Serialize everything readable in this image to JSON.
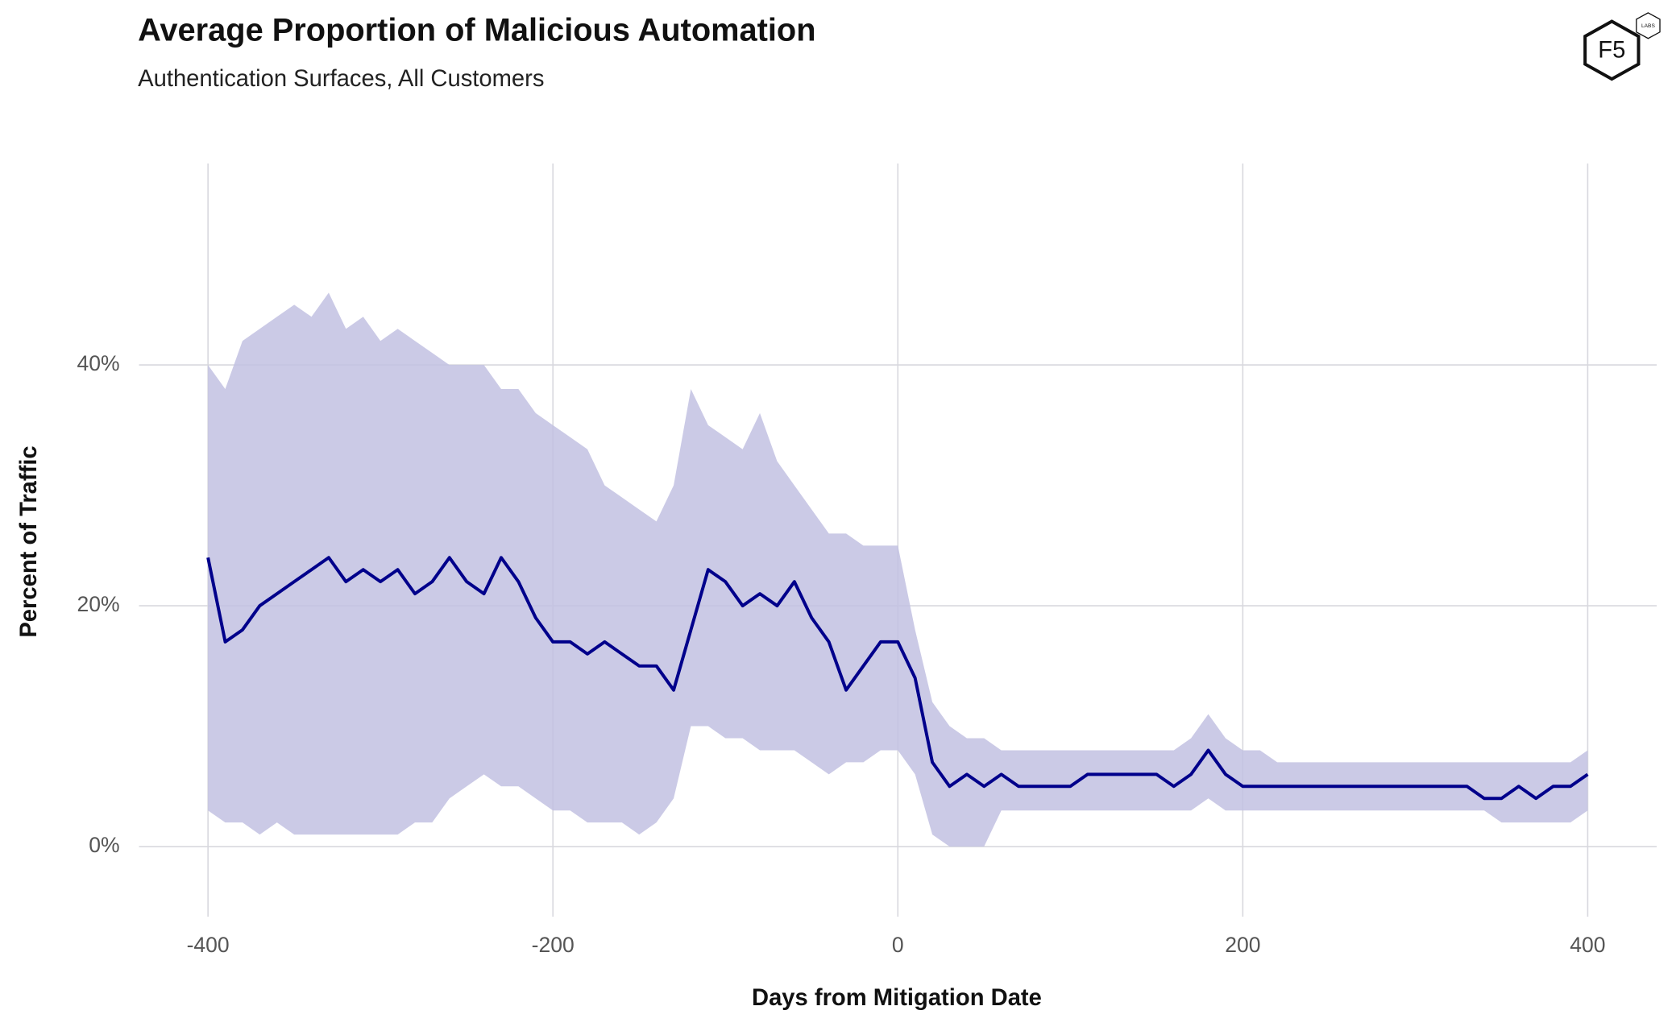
{
  "chart_data": {
    "type": "line",
    "title": "Average Proportion of Malicious Automation",
    "subtitle": "Authentication Surfaces, All Customers",
    "xlabel": "Days from Mitigation Date",
    "ylabel": "Percent of Traffic",
    "x": [
      -400,
      -390,
      -380,
      -370,
      -360,
      -350,
      -340,
      -330,
      -320,
      -310,
      -300,
      -290,
      -280,
      -270,
      -260,
      -250,
      -240,
      -230,
      -220,
      -210,
      -200,
      -190,
      -180,
      -170,
      -160,
      -150,
      -140,
      -130,
      -120,
      -110,
      -100,
      -90,
      -80,
      -70,
      -60,
      -50,
      -40,
      -30,
      -20,
      -10,
      0,
      10,
      20,
      30,
      40,
      50,
      60,
      70,
      80,
      90,
      100,
      110,
      120,
      130,
      140,
      150,
      160,
      170,
      180,
      190,
      200,
      210,
      220,
      230,
      240,
      250,
      260,
      270,
      280,
      290,
      300,
      310,
      320,
      330,
      340,
      350,
      360,
      370,
      380,
      390,
      400
    ],
    "series": [
      {
        "color": "#00008b",
        "values": [
          24,
          17,
          18,
          20,
          21,
          22,
          23,
          24,
          22,
          23,
          22,
          23,
          21,
          22,
          24,
          22,
          21,
          24,
          22,
          19,
          17,
          17,
          16,
          17,
          16,
          15,
          15,
          13,
          18,
          23,
          22,
          20,
          21,
          20,
          22,
          19,
          17,
          13,
          15,
          17,
          17,
          14,
          7,
          5,
          6,
          5,
          6,
          5,
          5,
          5,
          5,
          6,
          6,
          6,
          6,
          6,
          5,
          6,
          8,
          6,
          5,
          5,
          5,
          5,
          5,
          5,
          5,
          5,
          5,
          5,
          5,
          5,
          5,
          5,
          4,
          4,
          5,
          4,
          5,
          5,
          6
        ]
      }
    ],
    "band": {
      "color": "#c2c1e2",
      "upper": [
        40,
        38,
        42,
        43,
        44,
        45,
        44,
        46,
        43,
        44,
        42,
        43,
        42,
        41,
        40,
        40,
        40,
        38,
        38,
        36,
        35,
        34,
        33,
        30,
        29,
        28,
        27,
        30,
        38,
        35,
        34,
        33,
        36,
        32,
        30,
        28,
        26,
        26,
        25,
        25,
        25,
        18,
        12,
        10,
        9,
        9,
        8,
        8,
        8,
        8,
        8,
        8,
        8,
        8,
        8,
        8,
        8,
        9,
        11,
        9,
        8,
        8,
        7,
        7,
        7,
        7,
        7,
        7,
        7,
        7,
        7,
        7,
        7,
        7,
        7,
        7,
        7,
        7,
        7,
        7,
        8
      ],
      "lower": [
        3,
        2,
        2,
        1,
        2,
        1,
        1,
        1,
        1,
        1,
        1,
        1,
        2,
        2,
        4,
        5,
        6,
        5,
        5,
        4,
        3,
        3,
        2,
        2,
        2,
        1,
        2,
        4,
        10,
        10,
        9,
        9,
        8,
        8,
        8,
        7,
        6,
        7,
        7,
        8,
        8,
        6,
        1,
        0,
        0,
        0,
        3,
        3,
        3,
        3,
        3,
        3,
        3,
        3,
        3,
        3,
        3,
        3,
        4,
        3,
        3,
        3,
        3,
        3,
        3,
        3,
        3,
        3,
        3,
        3,
        3,
        3,
        3,
        3,
        3,
        2,
        2,
        2,
        2,
        2,
        3
      ]
    },
    "xlim": [
      -440,
      440
    ],
    "ylim": [
      -6,
      57
    ],
    "xticks": [
      -400,
      -200,
      0,
      200,
      400
    ],
    "yticks": [
      {
        "value": 0,
        "label": "0%"
      },
      {
        "value": 20,
        "label": "20%"
      },
      {
        "value": 40,
        "label": "40%"
      }
    ],
    "grid": true
  },
  "logo": {
    "text": "F5",
    "badge": "LABS"
  }
}
